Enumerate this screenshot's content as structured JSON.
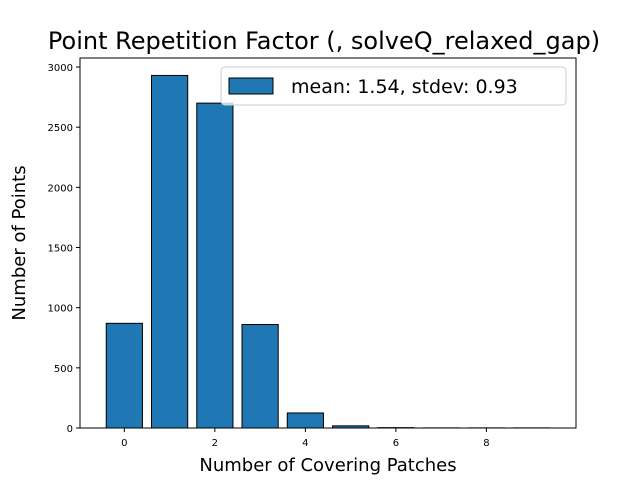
{
  "chart_data": {
    "type": "bar",
    "title": "Point Repetition Factor (, solveQ_relaxed_gap)",
    "xlabel": "Number of Covering Patches",
    "ylabel": "Number of Points",
    "x": [
      0,
      1,
      2,
      3,
      4,
      5,
      6,
      7,
      8,
      9
    ],
    "values": [
      870,
      2930,
      2700,
      860,
      125,
      18,
      3,
      1,
      1,
      1
    ],
    "xlim": [
      -0.98,
      9.98
    ],
    "ylim": [
      0,
      3075
    ],
    "xticks": [
      0,
      2,
      4,
      6,
      8
    ],
    "yticks": [
      0,
      500,
      1000,
      1500,
      2000,
      2500,
      3000
    ],
    "bar_color": "#1f77b4",
    "edge_color": "#000000",
    "grid": false,
    "legend": {
      "placement": "top-right",
      "entries": [
        "mean: 1.54, stdev: 0.93"
      ]
    }
  }
}
